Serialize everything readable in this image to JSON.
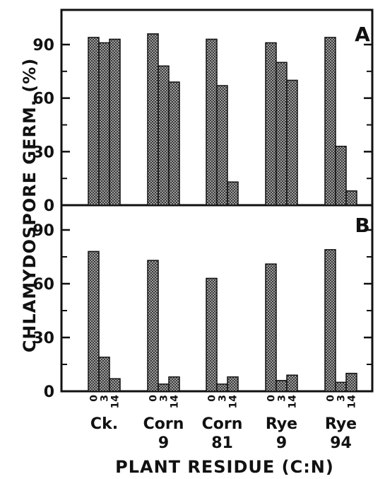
{
  "chart_data": {
    "type": "bar",
    "xlabel": "PLANT RESIDUE (C:N)",
    "ylabel": "CHLAMYDOSPORE GERM. (%)",
    "ylim": [
      0,
      100
    ],
    "yticks": [
      "0",
      "30",
      "60",
      "90"
    ],
    "bar_days": [
      "0",
      "3",
      "14"
    ],
    "categories": [
      {
        "line1": "Ck.",
        "line2": ""
      },
      {
        "line1": "Corn",
        "line2": "9"
      },
      {
        "line1": "Corn",
        "line2": "81"
      },
      {
        "line1": "Rye",
        "line2": "9"
      },
      {
        "line1": "Rye",
        "line2": "94"
      }
    ],
    "panels": [
      {
        "label": "A",
        "values": [
          [
            94,
            91,
            93
          ],
          [
            96,
            78,
            69
          ],
          [
            93,
            67,
            13
          ],
          [
            91,
            80,
            70
          ],
          [
            94,
            33,
            8
          ]
        ]
      },
      {
        "label": "B",
        "values": [
          [
            78,
            19,
            7
          ],
          [
            73,
            4,
            8
          ],
          [
            63,
            4,
            8
          ],
          [
            71,
            6,
            9
          ],
          [
            79,
            5,
            10
          ]
        ]
      }
    ],
    "bar_color": "#8a8a8a",
    "hatch": "crosshatch",
    "grid": false
  }
}
